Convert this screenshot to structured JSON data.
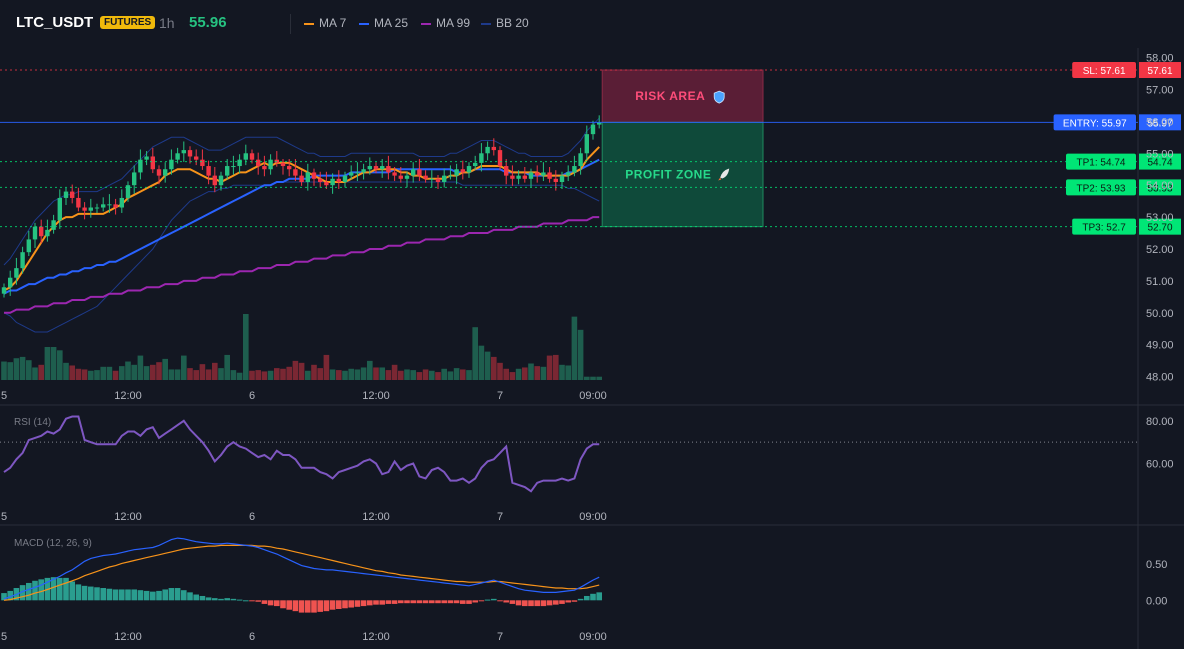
{
  "header": {
    "symbol": "LTC_USDT",
    "badge": "FUTURES",
    "timeframe": "1h",
    "price": "55.96"
  },
  "legend": [
    {
      "label": "MA 7",
      "color": "#f7931a"
    },
    {
      "label": "MA 25",
      "color": "#2962ff"
    },
    {
      "label": "MA 99",
      "color": "#9c27b0"
    },
    {
      "label": "BB 20",
      "color": "#1e3a8a"
    }
  ],
  "colors": {
    "up": "#26c281",
    "down": "#f23645",
    "macd": "#2962ff",
    "signal": "#f7931a",
    "rsi": "#7e57c2"
  },
  "zones": {
    "risk": {
      "label": "RISK AREA",
      "icon": "shield-icon",
      "color": "#f23645"
    },
    "profit": {
      "label": "PROFIT ZONE",
      "icon": "rocket-icon",
      "color": "#26c281"
    }
  },
  "levels": [
    {
      "name": "SL",
      "tag": "SL: 57.61",
      "value": 57.61,
      "axis_label": "57.61",
      "color": "#f23645"
    },
    {
      "name": "ENTRY",
      "tag": "ENTRY: 55.97",
      "value": 55.97,
      "axis_label": "55.97",
      "color": "#2962ff"
    },
    {
      "name": "TP1",
      "tag": "TP1: 54.74",
      "value": 54.74,
      "axis_label": "54.74",
      "color": "#00e676"
    },
    {
      "name": "TP2",
      "tag": "TP2: 53.93",
      "value": 53.93,
      "axis_label": "53.93",
      "color": "#00e676"
    },
    {
      "name": "TP3",
      "tag": "TP3: 52.7",
      "value": 52.7,
      "axis_label": "52.70",
      "color": "#00e676"
    }
  ],
  "indicators": {
    "rsi_label": "RSI (14)",
    "macd_label": "MACD (12, 26, 9)"
  },
  "chart_data": {
    "type": "candlestick",
    "x_ticks": [
      {
        "index": 0,
        "label": "5"
      },
      {
        "index": 20,
        "label": "12:00"
      },
      {
        "index": 40,
        "label": "6"
      },
      {
        "index": 60,
        "label": "12:00"
      },
      {
        "index": 80,
        "label": "7"
      },
      {
        "index": 95,
        "label": "09:00"
      }
    ],
    "price_axis": {
      "ylim": [
        47.8,
        58.3
      ],
      "ticks": [
        48,
        49,
        50,
        51,
        52,
        53,
        54,
        55,
        56,
        57,
        58
      ],
      "tick_labels": [
        "48.00",
        "49.00",
        "50.00",
        "51.00",
        "52.00",
        "53.00",
        "54.00",
        "55.00",
        "56.00",
        "57.00",
        "58.00"
      ]
    },
    "volume_ylim": [
      0,
      10
    ],
    "rsi_axis": {
      "ylim": [
        42,
        86
      ],
      "ticks": [
        60,
        80
      ],
      "tick_labels": [
        "60.00",
        "80.00"
      ],
      "reference": 70
    },
    "macd_axis": {
      "ylim": [
        -0.3,
        1.0
      ],
      "ticks": [
        0,
        0.5
      ],
      "tick_labels": [
        "0.00",
        "0.50"
      ]
    },
    "series": [
      {
        "name": "MA 7",
        "values": [
          50.7,
          50.8,
          51.0,
          51.3,
          51.6,
          51.9,
          52.2,
          52.5,
          52.7,
          52.9,
          53.0,
          53.0,
          53.1,
          53.1,
          53.1,
          53.1,
          53.1,
          53.2,
          53.3,
          53.4,
          53.6,
          53.7,
          53.8,
          53.9,
          54.0,
          54.1,
          54.3,
          54.4,
          54.5,
          54.5,
          54.5,
          54.4,
          54.3,
          54.2,
          54.2,
          54.1,
          54.2,
          54.3,
          54.4,
          54.4,
          54.5,
          54.6,
          54.7,
          54.6,
          54.7,
          54.7,
          54.7,
          54.6,
          54.5,
          54.4,
          54.3,
          54.2,
          54.1,
          54.1,
          54.1,
          54.1,
          54.2,
          54.3,
          54.4,
          54.4,
          54.5,
          54.5,
          54.5,
          54.5,
          54.4,
          54.4,
          54.3,
          54.3,
          54.2,
          54.2,
          54.2,
          54.2,
          54.3,
          54.3,
          54.4,
          54.4,
          54.5,
          54.6,
          54.6,
          54.6,
          54.6,
          54.5,
          54.4,
          54.4,
          54.4,
          54.4,
          54.4,
          54.3,
          54.3,
          54.3,
          54.3,
          54.3,
          54.4,
          54.5,
          54.8,
          55.0,
          55.2
        ]
      },
      {
        "name": "MA 25",
        "values": [
          50.6,
          50.7,
          50.7,
          50.8,
          50.9,
          50.9,
          51.0,
          51.1,
          51.1,
          51.2,
          51.2,
          51.3,
          51.3,
          51.4,
          51.4,
          51.5,
          51.5,
          51.6,
          51.6,
          51.7,
          51.8,
          51.9,
          52.0,
          52.1,
          52.2,
          52.3,
          52.4,
          52.5,
          52.6,
          52.7,
          52.8,
          52.9,
          53.0,
          53.1,
          53.2,
          53.3,
          53.4,
          53.5,
          53.6,
          53.7,
          53.8,
          53.9,
          54.0,
          54.0,
          54.1,
          54.1,
          54.2,
          54.2,
          54.2,
          54.2,
          54.3,
          54.3,
          54.3,
          54.3,
          54.3,
          54.3,
          54.4,
          54.4,
          54.4,
          54.4,
          54.4,
          54.4,
          54.4,
          54.5,
          54.5,
          54.5,
          54.5,
          54.5,
          54.5,
          54.5,
          54.5,
          54.5,
          54.5,
          54.4,
          54.4,
          54.4,
          54.5,
          54.5,
          54.5,
          54.5,
          54.5,
          54.4,
          54.4,
          54.4,
          54.4,
          54.3,
          54.3,
          54.3,
          54.3,
          54.3,
          54.3,
          54.4,
          54.4,
          54.5,
          54.6,
          54.7,
          54.8
        ]
      },
      {
        "name": "MA 99",
        "values": [
          50.0,
          50.0,
          50.1,
          50.1,
          50.1,
          50.2,
          50.2,
          50.2,
          50.3,
          50.3,
          50.3,
          50.4,
          50.4,
          50.4,
          50.5,
          50.5,
          50.5,
          50.6,
          50.6,
          50.6,
          50.7,
          50.7,
          50.7,
          50.8,
          50.8,
          50.8,
          50.9,
          50.9,
          50.9,
          51.0,
          51.0,
          51.0,
          51.1,
          51.1,
          51.1,
          51.2,
          51.2,
          51.2,
          51.3,
          51.3,
          51.3,
          51.4,
          51.4,
          51.4,
          51.5,
          51.5,
          51.5,
          51.6,
          51.6,
          51.6,
          51.7,
          51.7,
          51.7,
          51.8,
          51.8,
          51.8,
          51.9,
          51.9,
          51.9,
          52.0,
          52.0,
          52.0,
          52.1,
          52.1,
          52.1,
          52.2,
          52.2,
          52.2,
          52.3,
          52.3,
          52.3,
          52.3,
          52.4,
          52.4,
          52.4,
          52.5,
          52.5,
          52.5,
          52.5,
          52.6,
          52.6,
          52.6,
          52.6,
          52.7,
          52.7,
          52.7,
          52.7,
          52.8,
          52.8,
          52.8,
          52.8,
          52.9,
          52.9,
          52.9,
          52.9,
          53.0,
          53.0
        ]
      },
      {
        "name": "BB 20 upper",
        "values": [
          51.5,
          51.7,
          52.0,
          52.3,
          52.6,
          52.9,
          53.1,
          53.3,
          53.5,
          53.6,
          53.7,
          53.7,
          53.8,
          53.8,
          53.8,
          53.8,
          53.9,
          54.0,
          54.1,
          54.2,
          54.4,
          54.6,
          54.8,
          55.0,
          55.2,
          55.3,
          55.4,
          55.5,
          55.5,
          55.5,
          55.4,
          55.3,
          55.2,
          55.1,
          55.1,
          55.1,
          55.2,
          55.3,
          55.4,
          55.5,
          55.5,
          55.5,
          55.5,
          55.5,
          55.5,
          55.4,
          55.3,
          55.2,
          55.1,
          55.0,
          55.0,
          54.9,
          54.9,
          54.9,
          54.9,
          54.9,
          55.0,
          55.0,
          55.0,
          55.0,
          55.0,
          55.0,
          55.0,
          55.0,
          55.0,
          55.0,
          55.0,
          54.9,
          54.9,
          54.9,
          54.9,
          54.9,
          55.0,
          55.0,
          55.1,
          55.2,
          55.3,
          55.4,
          55.4,
          55.4,
          55.3,
          55.2,
          55.1,
          55.0,
          55.0,
          54.9,
          54.9,
          54.9,
          54.9,
          54.9,
          54.9,
          55.0,
          55.2,
          55.4,
          55.7,
          55.9,
          56.1
        ]
      },
      {
        "name": "BB 20 lower",
        "values": [
          50.0,
          49.9,
          49.7,
          49.6,
          49.5,
          49.4,
          49.4,
          49.4,
          49.5,
          49.6,
          49.7,
          49.8,
          49.9,
          50.0,
          50.1,
          50.2,
          50.4,
          50.6,
          50.8,
          51.0,
          51.2,
          51.4,
          51.6,
          51.8,
          52.0,
          52.3,
          52.6,
          52.9,
          53.1,
          53.3,
          53.5,
          53.6,
          53.7,
          53.8,
          53.8,
          53.9,
          53.9,
          54.0,
          54.0,
          54.0,
          54.0,
          54.0,
          54.0,
          54.0,
          54.1,
          54.1,
          54.1,
          54.1,
          54.1,
          54.1,
          54.1,
          54.1,
          54.1,
          54.1,
          54.1,
          54.1,
          54.1,
          54.1,
          54.1,
          54.1,
          54.1,
          54.1,
          54.1,
          54.1,
          54.1,
          54.1,
          54.1,
          54.1,
          54.1,
          54.1,
          54.1,
          54.1,
          54.1,
          54.1,
          54.0,
          54.0,
          54.0,
          54.0,
          54.0,
          54.0,
          54.0,
          54.0,
          54.0,
          54.0,
          54.0,
          54.0,
          54.0,
          54.0,
          54.0,
          54.0,
          54.0,
          53.9,
          53.9,
          53.8,
          53.7,
          53.6,
          53.5
        ]
      }
    ],
    "candles": {
      "open": [
        50.6,
        50.8,
        51.1,
        51.4,
        51.9,
        52.3,
        52.7,
        52.4,
        52.6,
        52.9,
        53.6,
        53.8,
        53.6,
        53.3,
        53.2,
        53.3,
        53.3,
        53.4,
        53.4,
        53.3,
        53.6,
        54.0,
        54.4,
        54.8,
        54.9,
        54.5,
        54.3,
        54.5,
        54.8,
        55.0,
        55.1,
        54.9,
        54.8,
        54.6,
        54.3,
        54.0,
        54.3,
        54.6,
        54.6,
        54.8,
        55.0,
        54.8,
        54.6,
        54.5,
        54.8,
        54.7,
        54.6,
        54.5,
        54.3,
        54.1,
        54.4,
        54.2,
        54.1,
        54.0,
        54.2,
        54.1,
        54.3,
        54.4,
        54.4,
        54.5,
        54.6,
        54.5,
        54.6,
        54.4,
        54.3,
        54.2,
        54.3,
        54.5,
        54.3,
        54.2,
        54.2,
        54.1,
        54.3,
        54.3,
        54.5,
        54.4,
        54.6,
        54.7,
        55.0,
        55.2,
        55.1,
        54.6,
        54.3,
        54.2,
        54.3,
        54.2,
        54.4,
        54.3,
        54.4,
        54.2,
        54.1,
        54.3,
        54.4,
        54.6,
        55.0,
        55.6,
        55.9
      ]
    },
    "volume": [
      2.8,
      2.7,
      3.3,
      3.5,
      3.0,
      1.9,
      2.3,
      5.0,
      5.0,
      4.5,
      2.6,
      2.2,
      1.7,
      1.6,
      1.4,
      1.5,
      2.0,
      2.0,
      1.4,
      2.1,
      2.8,
      2.3,
      3.7,
      2.1,
      2.3,
      2.7,
      3.2,
      1.6,
      1.6,
      3.7,
      1.8,
      1.5,
      2.4,
      1.6,
      2.6,
      1.8,
      3.8,
      1.5,
      1.1,
      10.0,
      1.4,
      1.5,
      1.3,
      1.4,
      1.8,
      1.7,
      2.0,
      2.9,
      2.6,
      1.4,
      2.3,
      1.8,
      3.8,
      1.6,
      1.5,
      1.4,
      1.7,
      1.6,
      1.9,
      2.9,
      1.9,
      1.9,
      1.5,
      2.3,
      1.4,
      1.6,
      1.5,
      1.2,
      1.6,
      1.4,
      1.2,
      1.7,
      1.3,
      1.8,
      1.6,
      1.5,
      8.0,
      5.2,
      4.3,
      3.5,
      2.6,
      1.7,
      1.2,
      1.7,
      1.9,
      2.5,
      2.1,
      2.0,
      3.7,
      3.8,
      2.3,
      2.2,
      9.6,
      7.6,
      0.5,
      0.5,
      0.5
    ],
    "rsi": [
      56,
      58,
      62,
      65,
      71,
      72,
      73,
      75,
      74,
      76,
      81,
      82,
      82,
      71,
      70,
      69,
      69,
      69,
      69,
      73,
      75,
      75,
      73,
      76,
      77,
      72,
      74,
      76,
      78,
      80,
      76,
      73,
      70,
      66,
      61,
      64,
      68,
      70,
      68,
      67,
      65,
      63,
      64,
      62,
      66,
      64,
      64,
      62,
      58,
      58,
      58,
      56,
      55,
      53,
      56,
      57,
      58,
      59,
      61,
      62,
      60,
      55,
      56,
      61,
      57,
      59,
      60,
      54,
      53,
      57,
      58,
      56,
      52,
      52,
      53,
      51,
      53,
      58,
      61,
      62,
      65,
      68,
      51,
      50,
      49,
      47,
      51,
      52,
      52,
      52,
      53,
      52,
      53,
      62,
      67,
      69,
      69
    ],
    "macd": [
      0.02,
      0.05,
      0.08,
      0.12,
      0.15,
      0.18,
      0.21,
      0.25,
      0.29,
      0.33,
      0.38,
      0.42,
      0.48,
      0.54,
      0.58,
      0.6,
      0.62,
      0.63,
      0.64,
      0.66,
      0.68,
      0.7,
      0.71,
      0.72,
      0.73,
      0.76,
      0.8,
      0.84,
      0.86,
      0.85,
      0.83,
      0.81,
      0.8,
      0.79,
      0.78,
      0.78,
      0.79,
      0.78,
      0.77,
      0.76,
      0.75,
      0.73,
      0.7,
      0.67,
      0.64,
      0.6,
      0.56,
      0.52,
      0.48,
      0.46,
      0.44,
      0.43,
      0.42,
      0.42,
      0.41,
      0.4,
      0.39,
      0.38,
      0.37,
      0.36,
      0.35,
      0.34,
      0.33,
      0.32,
      0.31,
      0.3,
      0.29,
      0.28,
      0.27,
      0.26,
      0.25,
      0.24,
      0.23,
      0.22,
      0.21,
      0.2,
      0.22,
      0.24,
      0.26,
      0.28,
      0.25,
      0.22,
      0.19,
      0.16,
      0.14,
      0.13,
      0.12,
      0.11,
      0.11,
      0.11,
      0.12,
      0.13,
      0.14,
      0.18,
      0.23,
      0.28,
      0.32
    ],
    "signal": [
      0.0,
      0.01,
      0.03,
      0.05,
      0.07,
      0.1,
      0.12,
      0.15,
      0.18,
      0.21,
      0.24,
      0.27,
      0.3,
      0.34,
      0.37,
      0.4,
      0.43,
      0.46,
      0.48,
      0.51,
      0.53,
      0.55,
      0.57,
      0.59,
      0.61,
      0.63,
      0.65,
      0.67,
      0.69,
      0.71,
      0.72,
      0.73,
      0.74,
      0.75,
      0.75,
      0.76,
      0.76,
      0.76,
      0.76,
      0.76,
      0.76,
      0.75,
      0.75,
      0.74,
      0.72,
      0.71,
      0.69,
      0.67,
      0.65,
      0.63,
      0.61,
      0.59,
      0.57,
      0.55,
      0.53,
      0.51,
      0.49,
      0.47,
      0.45,
      0.43,
      0.41,
      0.4,
      0.38,
      0.37,
      0.35,
      0.34,
      0.33,
      0.32,
      0.31,
      0.3,
      0.29,
      0.28,
      0.27,
      0.26,
      0.26,
      0.25,
      0.25,
      0.25,
      0.25,
      0.26,
      0.26,
      0.25,
      0.24,
      0.23,
      0.22,
      0.21,
      0.2,
      0.19,
      0.18,
      0.17,
      0.17,
      0.16,
      0.16,
      0.16,
      0.17,
      0.19,
      0.21
    ],
    "histogram": [
      0.1,
      0.13,
      0.17,
      0.21,
      0.24,
      0.27,
      0.29,
      0.31,
      0.32,
      0.31,
      0.31,
      0.26,
      0.22,
      0.2,
      0.19,
      0.18,
      0.17,
      0.16,
      0.15,
      0.15,
      0.15,
      0.15,
      0.14,
      0.13,
      0.12,
      0.13,
      0.15,
      0.17,
      0.17,
      0.14,
      0.11,
      0.08,
      0.06,
      0.04,
      0.03,
      0.02,
      0.03,
      0.02,
      0.01,
      0.0,
      -0.01,
      -0.02,
      -0.05,
      -0.07,
      -0.08,
      -0.11,
      -0.13,
      -0.15,
      -0.17,
      -0.17,
      -0.17,
      -0.16,
      -0.15,
      -0.13,
      -0.12,
      -0.11,
      -0.1,
      -0.09,
      -0.08,
      -0.07,
      -0.06,
      -0.06,
      -0.05,
      -0.05,
      -0.04,
      -0.04,
      -0.04,
      -0.04,
      -0.04,
      -0.04,
      -0.04,
      -0.04,
      -0.04,
      -0.04,
      -0.05,
      -0.05,
      -0.03,
      -0.01,
      0.01,
      0.02,
      -0.01,
      -0.03,
      -0.05,
      -0.07,
      -0.08,
      -0.08,
      -0.08,
      -0.08,
      -0.07,
      -0.06,
      -0.05,
      -0.03,
      -0.02,
      0.02,
      0.06,
      0.09,
      0.11
    ]
  }
}
